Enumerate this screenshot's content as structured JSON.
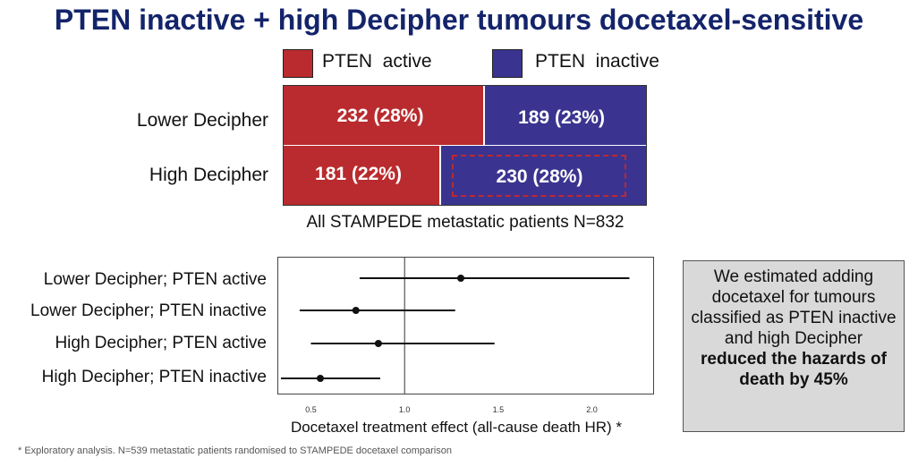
{
  "title": "PTEN inactive + high Decipher tumours docetaxel-sensitive",
  "colors": {
    "active": "#b92b2e",
    "inactive": "#3a3490",
    "highlight": "#c0282d",
    "text": "#111111",
    "title": "#14246b"
  },
  "legend": [
    {
      "label": "PTEN  active",
      "color_key": "active"
    },
    {
      "label": "PTEN  inactive",
      "color_key": "inactive"
    }
  ],
  "bar_chart": {
    "caption": "All STAMPEDE metastatic patients N=832",
    "rows": [
      {
        "label": "Lower Decipher",
        "active_text": "232 (28%)",
        "inactive_text": "189 (23%)"
      },
      {
        "label": "High Decipher",
        "active_text": "181 (22%)",
        "inactive_text": "230 (28%)"
      }
    ]
  },
  "chart_data": [
    {
      "type": "bar",
      "orientation": "horizontal",
      "stacked": true,
      "title": "All STAMPEDE metastatic patients N=832",
      "categories": [
        "Lower Decipher",
        "High Decipher"
      ],
      "series": [
        {
          "name": "PTEN active",
          "values": [
            232,
            181
          ],
          "percents": [
            28,
            22
          ]
        },
        {
          "name": "PTEN inactive",
          "values": [
            189,
            230
          ],
          "percents": [
            23,
            28
          ]
        }
      ],
      "highlight": {
        "category": "High Decipher",
        "series": "PTEN inactive"
      }
    },
    {
      "type": "scatter",
      "subtype": "forest",
      "xlabel": "Docetaxel treatment effect (all-cause death HR)",
      "xlabel_suffix": "*",
      "xlim": [
        0.34,
        2.26
      ],
      "xticks": [
        0.5,
        1.0,
        1.5,
        2.0
      ],
      "tick_labels": [
        "0.5",
        "1.0",
        "1.5",
        "2.0"
      ],
      "reference_line": 1.0,
      "rows": [
        {
          "label": "Lower Decipher; PTEN active",
          "hr": 1.3,
          "lower": 0.76,
          "upper": 2.2
        },
        {
          "label": "Lower Decipher; PTEN inactive",
          "hr": 0.74,
          "lower": 0.44,
          "upper": 1.27
        },
        {
          "label": "High Decipher; PTEN active",
          "hr": 0.86,
          "lower": 0.5,
          "upper": 1.48
        },
        {
          "label": "High Decipher; PTEN inactive",
          "hr": 0.55,
          "lower": 0.34,
          "upper": 0.87
        }
      ]
    }
  ],
  "callout": {
    "plain": "We estimated adding docetaxel for tumours classified as PTEN inactive and high Decipher",
    "bold": "reduced the hazards of death by 45%"
  },
  "footnote": "* Exploratory analysis. N=539 metastatic patients randomised to STAMPEDE docetaxel comparison"
}
